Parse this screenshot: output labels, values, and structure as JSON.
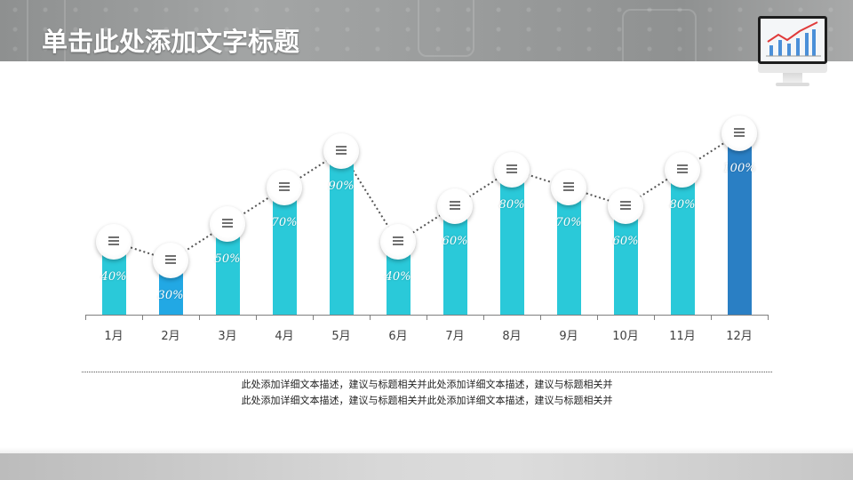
{
  "header": {
    "title": "单击此处添加文字标题",
    "illustration": "monitor-chart-icon"
  },
  "colors": {
    "bar_default": "#2ac9d9",
    "bar_highlight_low": "#22a8e4",
    "bar_highlight_high": "#2a7fc4",
    "axis": "#7f7f7f",
    "header_bg": "#999b9b",
    "marker_bg": "#ffffff",
    "connector": "#555555"
  },
  "chart_data": {
    "type": "bar",
    "title": "",
    "xlabel": "",
    "ylabel": "",
    "ylim": [
      0,
      100
    ],
    "grid": false,
    "legend": "none",
    "categories": [
      "1月",
      "2月",
      "3月",
      "4月",
      "5月",
      "6月",
      "7月",
      "8月",
      "9月",
      "10月",
      "11月",
      "12月"
    ],
    "values": [
      40,
      30,
      50,
      70,
      90,
      40,
      60,
      80,
      70,
      60,
      80,
      100
    ],
    "labels": [
      "40%",
      "30%",
      "50%",
      "70%",
      "90%",
      "40%",
      "60%",
      "80%",
      "70%",
      "60%",
      "80%",
      "100%"
    ],
    "bar_colors": [
      "#2ac9d9",
      "#22a8e4",
      "#2ac9d9",
      "#2ac9d9",
      "#2ac9d9",
      "#2ac9d9",
      "#2ac9d9",
      "#2ac9d9",
      "#2ac9d9",
      "#2ac9d9",
      "#2ac9d9",
      "#2a7fc4"
    ],
    "overlay": "dotted line connecting circular menu-icon markers at each bar top"
  },
  "description": {
    "lines": [
      "此处添加详细文本描述，建议与标题相关并此处添加详细文本描述，建议与标题相关并",
      "此处添加详细文本描述，建议与标题相关并此处添加详细文本描述，建议与标题相关并"
    ]
  }
}
